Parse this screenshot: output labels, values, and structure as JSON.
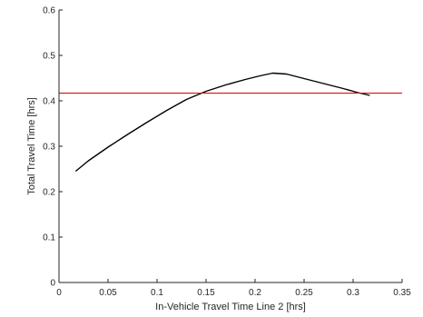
{
  "chart_data": {
    "type": "line",
    "title": "",
    "xlabel": "In-Vehicle Travel Time Line 2 [hrs]",
    "ylabel": "Total Travel Time [hrs]",
    "xlim": [
      0,
      0.35
    ],
    "ylim": [
      0,
      0.6
    ],
    "x_ticks": [
      "0",
      "0.05",
      "0.1",
      "0.15",
      "0.2",
      "0.25",
      "0.3",
      "0.35"
    ],
    "y_ticks": [
      "0",
      "0.1",
      "0.2",
      "0.3",
      "0.4",
      "0.5",
      "0.6"
    ],
    "grid": false,
    "legend": "none",
    "series": [
      {
        "color": "#000000",
        "x": [
          0.017,
          0.03,
          0.05,
          0.07,
          0.09,
          0.11,
          0.13,
          0.15,
          0.17,
          0.19,
          0.205,
          0.218,
          0.232,
          0.25,
          0.27,
          0.29,
          0.305,
          0.317
        ],
        "y": [
          0.245,
          0.268,
          0.298,
          0.326,
          0.353,
          0.379,
          0.403,
          0.421,
          0.435,
          0.447,
          0.455,
          0.461,
          0.459,
          0.449,
          0.438,
          0.427,
          0.418,
          0.412
        ]
      },
      {
        "color": "#e00000",
        "x": [
          0.0,
          0.35
        ],
        "y": [
          0.417,
          0.417
        ]
      }
    ]
  }
}
